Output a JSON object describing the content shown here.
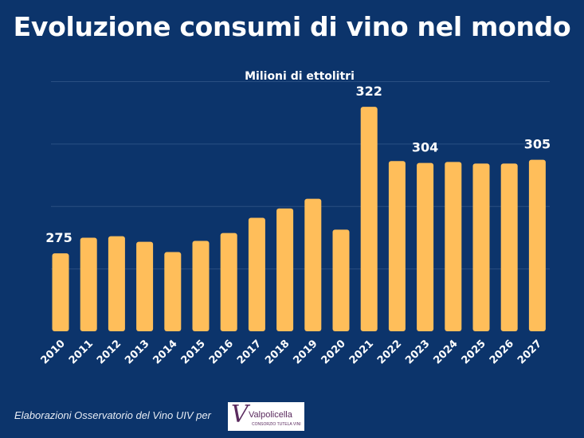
{
  "chart_data": {
    "type": "bar",
    "title": "Evoluzione consumi di vino nel mondo",
    "subtitle": "Milioni di ettolitri",
    "categories": [
      "2010",
      "2011",
      "2012",
      "2013",
      "2014",
      "2015",
      "2016",
      "2017",
      "2018",
      "2019",
      "2020",
      "2021",
      "2022",
      "2023",
      "2024",
      "2025",
      "2026",
      "2027"
    ],
    "values": [
      275,
      280,
      280.5,
      278.7,
      275.4,
      279,
      281.5,
      286.4,
      289.4,
      292.5,
      282.6,
      322,
      304.6,
      304,
      304.3,
      303.8,
      303.8,
      305
    ],
    "data_labels": {
      "2010": "275",
      "2021": "322",
      "2023": "304",
      "2027": "305"
    },
    "ylim": [
      250,
      332
    ],
    "grid": true,
    "bar_color": "#ffbe5a",
    "background": "#0c346b"
  },
  "footer": {
    "text": "Elaborazioni Osservatorio del Vino UIV per",
    "logo": {
      "mark": "V",
      "name": "Valpolicella",
      "sub": "CONSORZIO TUTELA VINI"
    }
  }
}
